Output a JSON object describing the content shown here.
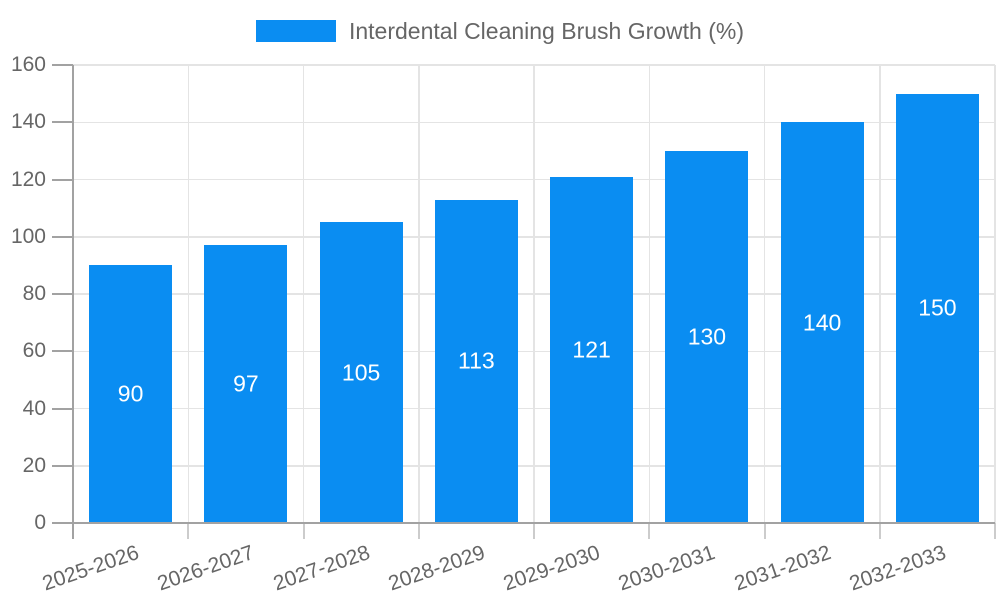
{
  "chart_data": {
    "type": "bar",
    "title": "Interdental Cleaning Brush Growth (%)",
    "categories": [
      "2025-2026",
      "2026-2027",
      "2027-2028",
      "2028-2029",
      "2029-2030",
      "2030-2031",
      "2031-2032",
      "2032-2033"
    ],
    "values": [
      90,
      97,
      105,
      113,
      121,
      130,
      140,
      150
    ],
    "xlabel": "",
    "ylabel": "",
    "ylim": [
      0,
      160
    ],
    "yticks": [
      0,
      20,
      40,
      60,
      80,
      100,
      120,
      140,
      160
    ],
    "grid": true,
    "legend_position": "top-center",
    "value_labels": "inside-center",
    "x_label_rotation_deg": -19,
    "colors": {
      "bar": "#0a8df2",
      "bar_label": "#ffffff",
      "axis_text": "#666666",
      "grid_line": "#e4e4e4",
      "axis_line": "#a2a2a2",
      "tick": "#cccccc"
    }
  }
}
